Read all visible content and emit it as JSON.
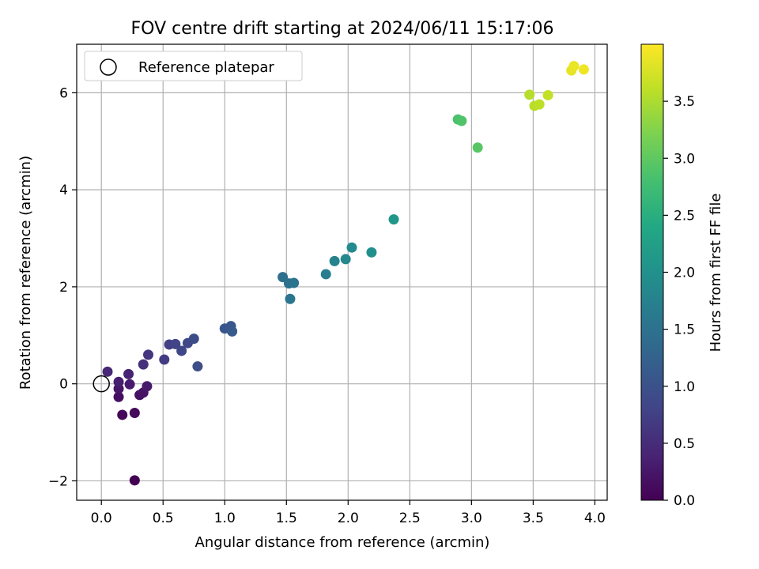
{
  "chart_data": {
    "type": "scatter",
    "title": "FOV centre drift starting at 2024/06/11 15:17:06",
    "xlabel": "Angular distance from reference (arcmin)",
    "ylabel": "Rotation from reference (arcmin)",
    "xlim": [
      -0.2,
      4.1
    ],
    "ylim": [
      -2.4,
      7.0
    ],
    "xticks": [
      0.0,
      0.5,
      1.0,
      1.5,
      2.0,
      2.5,
      3.0,
      3.5,
      4.0
    ],
    "xtick_labels": [
      "0.0",
      "0.5",
      "1.0",
      "1.5",
      "2.0",
      "2.5",
      "3.0",
      "3.5",
      "4.0"
    ],
    "yticks": [
      -2,
      0,
      2,
      4,
      6
    ],
    "ytick_labels": [
      "−2",
      "0",
      "2",
      "4",
      "6"
    ],
    "grid": true,
    "legend": {
      "placement": "top-left",
      "entries": [
        "Reference platepar"
      ]
    },
    "reference": {
      "x": 0.0,
      "y": 0.0
    },
    "colorbar": {
      "label": "Hours from first FF file",
      "range": [
        0.0,
        4.0
      ],
      "ticks": [
        0.0,
        0.5,
        1.0,
        1.5,
        2.0,
        2.5,
        3.0,
        3.5
      ],
      "tick_labels": [
        "0.0",
        "0.5",
        "1.0",
        "1.5",
        "2.0",
        "2.5",
        "3.0",
        "3.5"
      ],
      "colormap": "viridis"
    },
    "points": [
      {
        "x": 0.27,
        "y": -1.99,
        "t": 0.0
      },
      {
        "x": 0.17,
        "y": -0.64,
        "t": 0.07
      },
      {
        "x": 0.27,
        "y": -0.6,
        "t": 0.1
      },
      {
        "x": 0.14,
        "y": -0.27,
        "t": 0.15
      },
      {
        "x": 0.31,
        "y": -0.23,
        "t": 0.18
      },
      {
        "x": 0.34,
        "y": -0.18,
        "t": 0.21
      },
      {
        "x": 0.14,
        "y": -0.1,
        "t": 0.24
      },
      {
        "x": 0.37,
        "y": -0.05,
        "t": 0.27
      },
      {
        "x": 0.23,
        "y": -0.01,
        "t": 0.3
      },
      {
        "x": 0.14,
        "y": 0.04,
        "t": 0.34
      },
      {
        "x": 0.22,
        "y": 0.2,
        "t": 0.39
      },
      {
        "x": 0.05,
        "y": 0.25,
        "t": 0.45
      },
      {
        "x": 0.34,
        "y": 0.4,
        "t": 0.55
      },
      {
        "x": 0.38,
        "y": 0.6,
        "t": 0.62
      },
      {
        "x": 0.51,
        "y": 0.5,
        "t": 0.7
      },
      {
        "x": 0.55,
        "y": 0.81,
        "t": 0.76
      },
      {
        "x": 0.6,
        "y": 0.82,
        "t": 0.8
      },
      {
        "x": 0.65,
        "y": 0.68,
        "t": 0.84
      },
      {
        "x": 0.7,
        "y": 0.84,
        "t": 0.88
      },
      {
        "x": 0.75,
        "y": 0.93,
        "t": 0.92
      },
      {
        "x": 0.78,
        "y": 0.36,
        "t": 0.95
      },
      {
        "x": 1.0,
        "y": 1.14,
        "t": 1.05
      },
      {
        "x": 1.05,
        "y": 1.19,
        "t": 1.08
      },
      {
        "x": 1.06,
        "y": 1.08,
        "t": 1.12
      },
      {
        "x": 1.47,
        "y": 2.2,
        "t": 1.45
      },
      {
        "x": 1.52,
        "y": 2.07,
        "t": 1.48
      },
      {
        "x": 1.56,
        "y": 2.08,
        "t": 1.52
      },
      {
        "x": 1.53,
        "y": 1.75,
        "t": 1.55
      },
      {
        "x": 1.82,
        "y": 2.26,
        "t": 1.7
      },
      {
        "x": 1.89,
        "y": 2.53,
        "t": 1.78
      },
      {
        "x": 1.98,
        "y": 2.57,
        "t": 1.85
      },
      {
        "x": 2.03,
        "y": 2.81,
        "t": 1.9
      },
      {
        "x": 2.19,
        "y": 2.71,
        "t": 1.98
      },
      {
        "x": 2.37,
        "y": 3.39,
        "t": 2.1
      },
      {
        "x": 2.89,
        "y": 5.45,
        "t": 2.85
      },
      {
        "x": 2.92,
        "y": 5.42,
        "t": 2.88
      },
      {
        "x": 3.05,
        "y": 4.87,
        "t": 2.95
      },
      {
        "x": 3.47,
        "y": 5.96,
        "t": 3.55
      },
      {
        "x": 3.51,
        "y": 5.73,
        "t": 3.58
      },
      {
        "x": 3.55,
        "y": 5.76,
        "t": 3.6
      },
      {
        "x": 3.62,
        "y": 5.95,
        "t": 3.63
      },
      {
        "x": 3.81,
        "y": 6.46,
        "t": 3.85
      },
      {
        "x": 3.83,
        "y": 6.55,
        "t": 3.88
      },
      {
        "x": 3.91,
        "y": 6.48,
        "t": 3.92
      }
    ]
  }
}
